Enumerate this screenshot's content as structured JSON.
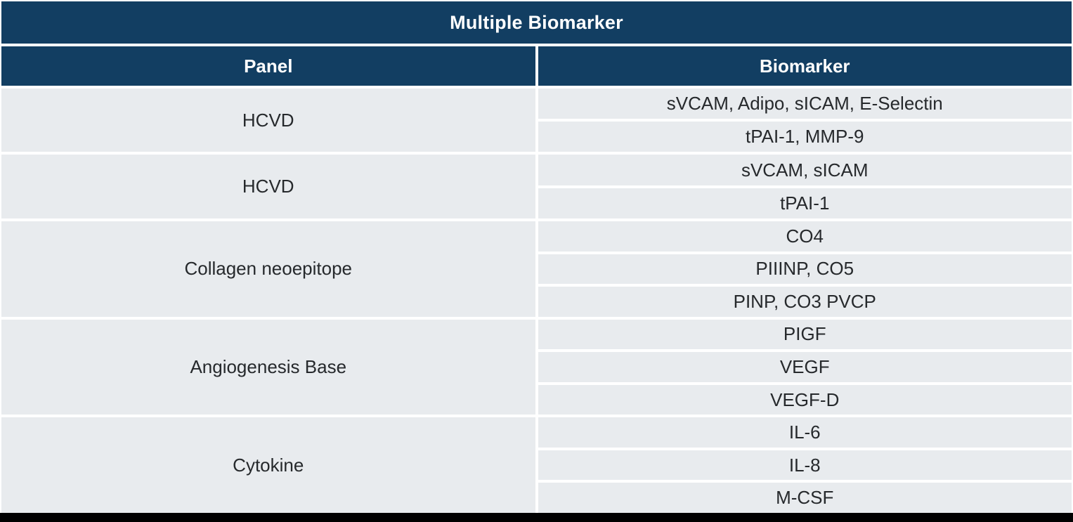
{
  "table": {
    "title": "Multiple Biomarker",
    "columns": {
      "panel": "Panel",
      "biomarker": "Biomarker"
    },
    "groups": [
      {
        "panel": "HCVD",
        "biomarkers": [
          "sVCAM, Adipo, sICAM, E-Selectin",
          "tPAI-1, MMP-9"
        ]
      },
      {
        "panel": "HCVD",
        "biomarkers": [
          "sVCAM, sICAM",
          "tPAI-1"
        ]
      },
      {
        "panel": "Collagen neoepitope",
        "biomarkers": [
          "CO4",
          "PIIINP, CO5",
          "PINP, CO3 PVCP"
        ]
      },
      {
        "panel": "Angiogenesis Base",
        "biomarkers": [
          "PIGF",
          "VEGF",
          "VEGF-D"
        ]
      },
      {
        "panel": "Cytokine",
        "biomarkers": [
          "IL-6",
          "IL-8",
          "M-CSF"
        ]
      }
    ],
    "colors": {
      "header_bg": "#123E62",
      "header_text": "#FFFFFF",
      "row_bg": "#E8EBEE",
      "body_text": "#26292C",
      "separator": "#FFFFFF",
      "bottom_bar": "#000000"
    }
  }
}
